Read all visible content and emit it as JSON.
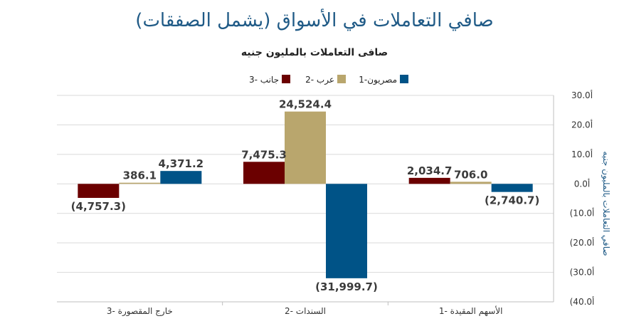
{
  "title": "صافي التعاملات في الأسواق (يشمل الصفقات)",
  "chart_data": {
    "type": "bar",
    "title": "صافى التعاملات بالمليون جنيه",
    "ylabel": "صافي التعاملات بالمليون جنيه",
    "xlabel": "",
    "ylim": [
      -40,
      30
    ],
    "yticks": [
      30,
      20,
      10,
      0,
      -10,
      -20,
      -30,
      -40
    ],
    "ytick_labels": [
      "30.0أ",
      "20.0أ",
      "10.0أ",
      "0.0أ",
      "(10.0أ",
      "(20.0أ",
      "(30.0أ",
      "(40.0أ"
    ],
    "grid": true,
    "legend_position": "top",
    "categories": [
      "خارج المقصورة -3",
      "السندات -2",
      "الأسهم المقيدة -1"
    ],
    "series": [
      {
        "name": "جانب -3",
        "color": "#6b0000",
        "values": [
          -4.7573,
          7.4753,
          2.0347
        ],
        "labels": [
          "(4,757.3)",
          "7,475.3",
          "2,034.7"
        ]
      },
      {
        "name": "عرب -2",
        "color": "#b9a66d",
        "values": [
          0.3861,
          24.5244,
          0.706
        ],
        "labels": [
          "386.1",
          "24,524.4",
          "706.0"
        ]
      },
      {
        "name": "مصريون-1",
        "color": "#005387",
        "values": [
          4.3712,
          -31.9997,
          -2.7407
        ],
        "labels": [
          "4,371.2",
          "(31,999.7)",
          "(2,740.7)"
        ]
      }
    ]
  }
}
